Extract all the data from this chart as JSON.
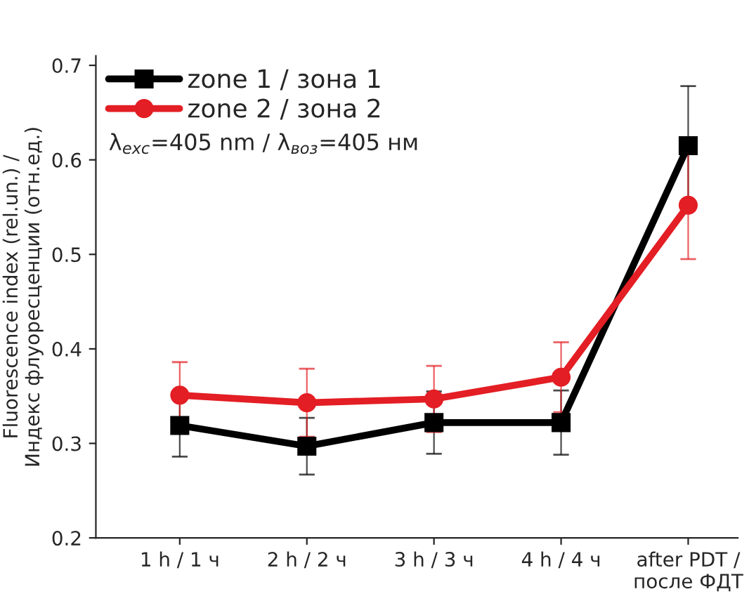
{
  "chart_data": {
    "type": "line",
    "categories": [
      "1 h / 1 ч",
      "2 h / 2 ч",
      "3 h / 3 ч",
      "4 h / 4 ч",
      "after PDT /\nпосле ФДТ"
    ],
    "series": [
      {
        "name": "zone 1 / зона 1",
        "color": "#000000",
        "marker": "square",
        "values": [
          0.319,
          0.297,
          0.322,
          0.322,
          0.615
        ],
        "errors": [
          0.033,
          0.03,
          0.033,
          0.034,
          0.063
        ]
      },
      {
        "name": "zone 2 / зона 2",
        "color": "#e31e24",
        "marker": "circle",
        "values": [
          0.351,
          0.343,
          0.347,
          0.37,
          0.552
        ],
        "errors": [
          0.035,
          0.036,
          0.035,
          0.037,
          0.057
        ]
      }
    ],
    "ylabel": "Fluorescence index (rel.un.) /\nИндекс флуоресценции (отн.ед.)",
    "annotations": [
      "λ$_{exc}$=405 nm / λ$_{воз}$=405 нм"
    ],
    "ylim": [
      0.2,
      0.71
    ],
    "yticks": [
      0.2,
      0.3,
      0.4,
      0.5,
      0.6,
      0.7
    ],
    "legend": "top left",
    "grid": false,
    "line_style": "solid"
  }
}
